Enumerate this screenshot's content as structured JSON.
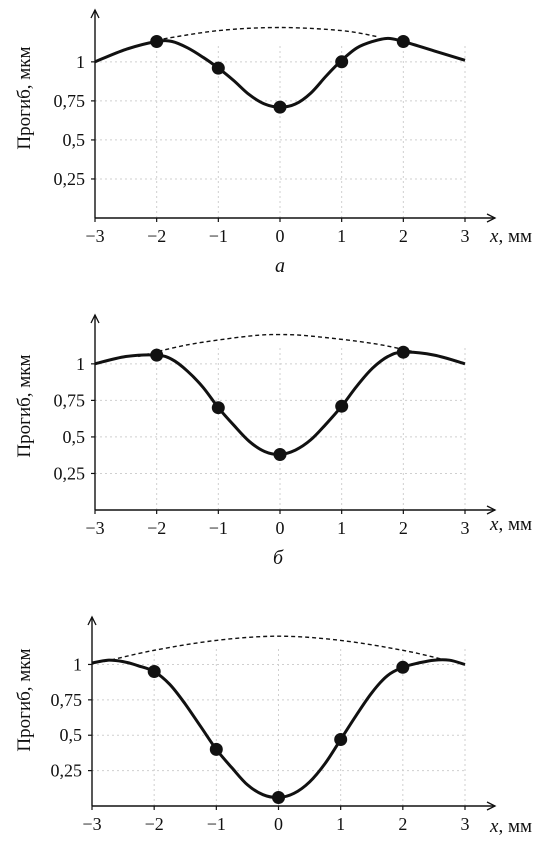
{
  "figure": {
    "ylabel": "Прогиб, мкм",
    "xlabel_var": "x",
    "xlabel_unit": ", мм",
    "xtick_labels": [
      "−3",
      "−2",
      "−1",
      "0",
      "1",
      "2",
      "3"
    ],
    "ytick_labels": [
      "0,25",
      "0,5",
      "0,75",
      "1"
    ]
  },
  "chart_data": [
    {
      "type": "line",
      "caption": "а",
      "xlabel": "x, мм",
      "ylabel": "Прогиб, мкм",
      "xlim": [
        -3,
        3
      ],
      "ylim": [
        0,
        1.3
      ],
      "xticks": [
        -3,
        -2,
        -1,
        0,
        1,
        2,
        3
      ],
      "yticks": [
        0.25,
        0.5,
        0.75,
        1
      ],
      "grid": true,
      "series": [
        {
          "style": "solid",
          "points": [
            {
              "x": -3.0,
              "y": 1.0
            },
            {
              "x": -2.5,
              "y": 1.08
            },
            {
              "x": -2.0,
              "y": 1.13
            },
            {
              "x": -1.75,
              "y": 1.13
            },
            {
              "x": -1.5,
              "y": 1.09
            },
            {
              "x": -1.25,
              "y": 1.03
            },
            {
              "x": -1.0,
              "y": 0.96
            },
            {
              "x": -0.75,
              "y": 0.88
            },
            {
              "x": -0.5,
              "y": 0.79
            },
            {
              "x": -0.25,
              "y": 0.73
            },
            {
              "x": 0.0,
              "y": 0.71
            },
            {
              "x": 0.25,
              "y": 0.73
            },
            {
              "x": 0.5,
              "y": 0.8
            },
            {
              "x": 0.75,
              "y": 0.91
            },
            {
              "x": 1.0,
              "y": 1.01
            },
            {
              "x": 1.25,
              "y": 1.09
            },
            {
              "x": 1.5,
              "y": 1.13
            },
            {
              "x": 1.75,
              "y": 1.15
            },
            {
              "x": 2.0,
              "y": 1.13
            },
            {
              "x": 2.5,
              "y": 1.07
            },
            {
              "x": 3.0,
              "y": 1.01
            }
          ]
        },
        {
          "style": "dashed",
          "points": [
            {
              "x": -2.0,
              "y": 1.14
            },
            {
              "x": -1.0,
              "y": 1.2
            },
            {
              "x": 0.0,
              "y": 1.22
            },
            {
              "x": 1.0,
              "y": 1.2
            },
            {
              "x": 1.6,
              "y": 1.16
            }
          ]
        },
        {
          "style": "markers",
          "points": [
            {
              "x": -2,
              "y": 1.13
            },
            {
              "x": -1,
              "y": 0.96
            },
            {
              "x": 0,
              "y": 0.71
            },
            {
              "x": 1,
              "y": 1.0
            },
            {
              "x": 2,
              "y": 1.13
            }
          ]
        }
      ]
    },
    {
      "type": "line",
      "caption": "б",
      "xlabel": "x, мм",
      "ylabel": "Прогиб, мкм",
      "xlim": [
        -3,
        3
      ],
      "ylim": [
        0,
        1.3
      ],
      "xticks": [
        -3,
        -2,
        -1,
        0,
        1,
        2,
        3
      ],
      "yticks": [
        0.25,
        0.5,
        0.75,
        1
      ],
      "grid": true,
      "series": [
        {
          "style": "solid",
          "points": [
            {
              "x": -3.0,
              "y": 1.0
            },
            {
              "x": -2.5,
              "y": 1.05
            },
            {
              "x": -2.0,
              "y": 1.06
            },
            {
              "x": -1.75,
              "y": 1.03
            },
            {
              "x": -1.5,
              "y": 0.95
            },
            {
              "x": -1.25,
              "y": 0.84
            },
            {
              "x": -1.0,
              "y": 0.7
            },
            {
              "x": -0.75,
              "y": 0.58
            },
            {
              "x": -0.5,
              "y": 0.47
            },
            {
              "x": -0.25,
              "y": 0.4
            },
            {
              "x": 0.0,
              "y": 0.38
            },
            {
              "x": 0.25,
              "y": 0.41
            },
            {
              "x": 0.5,
              "y": 0.48
            },
            {
              "x": 0.75,
              "y": 0.59
            },
            {
              "x": 1.0,
              "y": 0.71
            },
            {
              "x": 1.25,
              "y": 0.85
            },
            {
              "x": 1.5,
              "y": 0.97
            },
            {
              "x": 1.75,
              "y": 1.05
            },
            {
              "x": 2.0,
              "y": 1.08
            },
            {
              "x": 2.5,
              "y": 1.06
            },
            {
              "x": 3.0,
              "y": 1.0
            }
          ]
        },
        {
          "style": "dashed",
          "points": [
            {
              "x": -2.3,
              "y": 1.05
            },
            {
              "x": -1.5,
              "y": 1.13
            },
            {
              "x": -0.5,
              "y": 1.19
            },
            {
              "x": 0.0,
              "y": 1.2
            },
            {
              "x": 0.5,
              "y": 1.19
            },
            {
              "x": 1.5,
              "y": 1.14
            },
            {
              "x": 2.2,
              "y": 1.08
            }
          ]
        },
        {
          "style": "markers",
          "points": [
            {
              "x": -2,
              "y": 1.06
            },
            {
              "x": -1,
              "y": 0.7
            },
            {
              "x": 0,
              "y": 0.38
            },
            {
              "x": 1,
              "y": 0.71
            },
            {
              "x": 2,
              "y": 1.08
            }
          ]
        }
      ]
    },
    {
      "type": "line",
      "caption": "",
      "xlabel": "x, мм",
      "ylabel": "Прогиб, мкм",
      "xlim": [
        -3,
        3
      ],
      "ylim": [
        0,
        1.3
      ],
      "xticks": [
        -3,
        -2,
        -1,
        0,
        1,
        2,
        3
      ],
      "yticks": [
        0.25,
        0.5,
        0.75,
        1
      ],
      "grid": true,
      "series": [
        {
          "style": "solid",
          "points": [
            {
              "x": -3.0,
              "y": 1.01
            },
            {
              "x": -2.75,
              "y": 1.03
            },
            {
              "x": -2.5,
              "y": 1.02
            },
            {
              "x": -2.25,
              "y": 0.99
            },
            {
              "x": -2.0,
              "y": 0.95
            },
            {
              "x": -1.75,
              "y": 0.86
            },
            {
              "x": -1.5,
              "y": 0.72
            },
            {
              "x": -1.25,
              "y": 0.56
            },
            {
              "x": -1.0,
              "y": 0.4
            },
            {
              "x": -0.75,
              "y": 0.27
            },
            {
              "x": -0.5,
              "y": 0.15
            },
            {
              "x": -0.25,
              "y": 0.08
            },
            {
              "x": 0.0,
              "y": 0.06
            },
            {
              "x": 0.25,
              "y": 0.09
            },
            {
              "x": 0.5,
              "y": 0.17
            },
            {
              "x": 0.75,
              "y": 0.3
            },
            {
              "x": 1.0,
              "y": 0.47
            },
            {
              "x": 1.25,
              "y": 0.64
            },
            {
              "x": 1.5,
              "y": 0.8
            },
            {
              "x": 1.75,
              "y": 0.92
            },
            {
              "x": 2.0,
              "y": 0.98
            },
            {
              "x": 2.25,
              "y": 1.01
            },
            {
              "x": 2.5,
              "y": 1.03
            },
            {
              "x": 2.75,
              "y": 1.03
            },
            {
              "x": 3.0,
              "y": 1.0
            }
          ]
        },
        {
          "style": "dashed",
          "points": [
            {
              "x": -2.8,
              "y": 1.02
            },
            {
              "x": -2.0,
              "y": 1.1
            },
            {
              "x": -1.0,
              "y": 1.17
            },
            {
              "x": 0.0,
              "y": 1.2
            },
            {
              "x": 1.0,
              "y": 1.17
            },
            {
              "x": 2.0,
              "y": 1.1
            },
            {
              "x": 2.7,
              "y": 1.03
            }
          ]
        },
        {
          "style": "markers",
          "points": [
            {
              "x": -2,
              "y": 0.95
            },
            {
              "x": -1,
              "y": 0.4
            },
            {
              "x": 0,
              "y": 0.06
            },
            {
              "x": 1,
              "y": 0.47
            },
            {
              "x": 2,
              "y": 0.98
            }
          ]
        }
      ]
    }
  ]
}
